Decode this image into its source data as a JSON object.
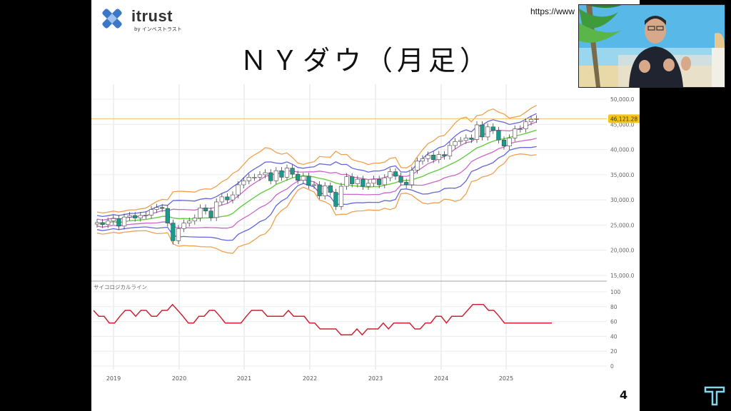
{
  "brand": {
    "name": "itrust",
    "subtitle": "by インベストラスト"
  },
  "header": {
    "url": "https://www",
    "title": "ＮＹダウ（月足）"
  },
  "page_number": "4",
  "colors": {
    "reference_line": "#f0c36b",
    "price_badge": "#f5c518",
    "up_candle": "#ffffff",
    "down_candle": "#1a9a8a",
    "upper_band": "#f0a050",
    "mid_band": "#6666dd",
    "inner_band": "#cc66cc",
    "ma_line": "#66cc44",
    "psychological": "#cc2233"
  },
  "chart_data": [
    {
      "type": "line",
      "subtype": "candlestick-bollinger",
      "current_price_label": "46,121.28",
      "current_price": 46121.28,
      "y_ticks": [
        "50,000.0",
        "45,000.0",
        "40,000.0",
        "35,000.0",
        "30,000.0",
        "25,000.0",
        "20,000.0",
        "15,000.0"
      ],
      "ylim": [
        15000,
        50000
      ],
      "x_ticks": [
        "2019",
        "2020",
        "2021",
        "2022",
        "2023",
        "2024",
        "2025"
      ],
      "close": [
        25500,
        25100,
        25800,
        26300,
        24800,
        26600,
        26900,
        26400,
        26900,
        27000,
        28100,
        28500,
        28300,
        25400,
        21900,
        24300,
        25400,
        25800,
        26400,
        28400,
        27800,
        26500,
        29600,
        30600,
        30000,
        31000,
        33000,
        33800,
        34500,
        34500,
        35000,
        35400,
        33800,
        35800,
        34500,
        36300,
        35100,
        33900,
        34700,
        32900,
        33000,
        30800,
        32800,
        31500,
        28700,
        32700,
        34600,
        33200,
        34100,
        32700,
        33300,
        34100,
        33000,
        34400,
        35600,
        34700,
        33500,
        33000,
        35900,
        37700,
        38200,
        38900,
        38000,
        39000,
        38700,
        40800,
        41600,
        41800,
        42300,
        42000,
        44900,
        42500,
        44500,
        43800,
        41900,
        40700,
        42300,
        44100,
        44100,
        45500,
        46000,
        46121
      ]
    },
    {
      "type": "line",
      "title": "サイコロジカルライン",
      "y_ticks": [
        "100",
        "80",
        "60",
        "40",
        "20",
        "0"
      ],
      "ylim": [
        0,
        100
      ],
      "values": [
        75,
        67,
        67,
        58,
        58,
        67,
        75,
        75,
        67,
        75,
        75,
        67,
        67,
        75,
        75,
        83,
        75,
        67,
        58,
        58,
        67,
        67,
        75,
        75,
        67,
        58,
        58,
        58,
        58,
        67,
        75,
        75,
        75,
        67,
        67,
        67,
        67,
        75,
        67,
        67,
        67,
        58,
        58,
        50,
        50,
        50,
        50,
        42,
        42,
        42,
        50,
        42,
        50,
        50,
        50,
        58,
        50,
        58,
        58,
        58,
        58,
        50,
        50,
        58,
        58,
        67,
        67,
        58,
        67,
        67,
        67,
        75,
        83,
        83,
        83,
        75,
        75,
        67,
        58,
        58,
        58,
        58,
        58,
        58,
        58,
        58,
        58,
        58
      ]
    }
  ]
}
